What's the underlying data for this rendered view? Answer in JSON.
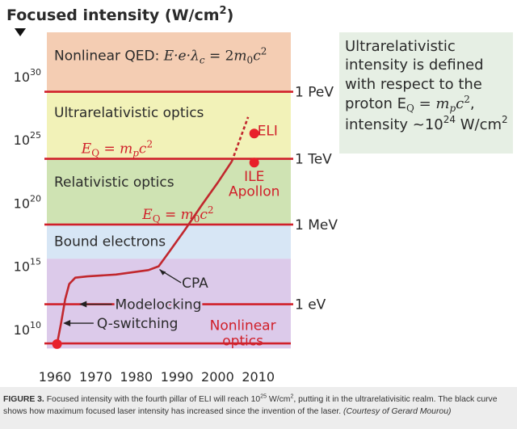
{
  "chart_data": {
    "type": "line",
    "title": "Focused intensity (W/cm2)",
    "title_base": "Focused intensity (W/cm",
    "title_sup": "2",
    "title_end": ")",
    "x_ticks": [
      "1960",
      "1970",
      "1980",
      "1990",
      "2000",
      "2010"
    ],
    "x_tick_values": [
      1960,
      1970,
      1980,
      1990,
      2000,
      2010
    ],
    "y_ticks": [
      {
        "base": "10",
        "exp": "10",
        "value": 10
      },
      {
        "base": "10",
        "exp": "15",
        "value": 15
      },
      {
        "base": "10",
        "exp": "20",
        "value": 20
      },
      {
        "base": "10",
        "exp": "25",
        "value": 25
      },
      {
        "base": "10",
        "exp": "30",
        "value": 30
      }
    ],
    "y_scale": "log10",
    "xlim": [
      1958,
      2018
    ],
    "ylim": [
      7.5,
      33.5
    ],
    "regions": [
      {
        "label": "Nonlinear QED: E·e·λc = 2m0c2",
        "y_range": [
          28.8,
          33.5
        ],
        "color": "#f4cdb3"
      },
      {
        "label": "Ultrarelativistic optics",
        "y_range": [
          23.5,
          28.8
        ],
        "color": "#f2f2b8"
      },
      {
        "label": "Relativistic optics",
        "y_range": [
          18.3,
          23.5
        ],
        "color": "#cfe3b3"
      },
      {
        "label": "Bound electrons",
        "y_range": [
          15.6,
          18.3
        ],
        "color": "#d7e6f5"
      },
      {
        "label": "",
        "y_range": [
          8.5,
          15.6
        ],
        "color": "#dccaea"
      }
    ],
    "thresholds": [
      {
        "energy": "1 PeV",
        "y": 28.8,
        "label": ""
      },
      {
        "energy": "1 TeV",
        "y": 23.5,
        "label": "E_Q = m_p c^2"
      },
      {
        "energy": "1 MeV",
        "y": 18.3,
        "label": "E_Q = m_0 c^2"
      },
      {
        "energy": "1 eV",
        "y": 12.0,
        "label": ""
      },
      {
        "energy": "",
        "y": 8.9,
        "label": "Nonlinear optics"
      }
    ],
    "series": [
      {
        "points": [
          [
            1960.5,
            8.85
          ],
          [
            1961.5,
            10.5
          ],
          [
            1962.5,
            12.4
          ],
          [
            1963.5,
            13.6
          ],
          [
            1965,
            14.1
          ],
          [
            1968,
            14.2
          ],
          [
            1975,
            14.35
          ],
          [
            1983,
            14.7
          ],
          [
            1985.5,
            15.0
          ],
          [
            1988,
            16.1
          ],
          [
            1992,
            17.9
          ],
          [
            1996,
            19.8
          ],
          [
            2000,
            21.6
          ],
          [
            2003.5,
            23.3
          ]
        ],
        "projection": [
          [
            2003.5,
            23.3
          ],
          [
            2007.5,
            26.8
          ]
        ]
      }
    ],
    "points": [
      {
        "label": "ELI",
        "x": 2009,
        "y": 25.5
      },
      {
        "label": "ILE Apollon",
        "x": 2009,
        "y": 23.2
      },
      {
        "label": "",
        "x": 1960.5,
        "y": 8.85
      }
    ],
    "annotations": [
      {
        "label": "CPA",
        "x": 1985.5,
        "y": 15.0
      },
      {
        "label": "Modelocking",
        "x": 1966,
        "y": 12.0
      },
      {
        "label": "Q-switching",
        "x": 1962,
        "y": 10.5
      }
    ],
    "side_note": {
      "line1": "Ultrarelativistic",
      "line2": "intensity is defined",
      "line3": "with respect to the",
      "line4": "proton E",
      "line5": "intensity ~10",
      "line5_exp": "24",
      "line5_end": " W/cm"
    },
    "colors": {
      "curve": "#c1272d",
      "points": "#e8202a",
      "threshold": "#d0202a",
      "text": "#2a2a2a"
    }
  },
  "caption": {
    "figure_label": "FIGURE 3.",
    "text_a": " Focused intensity with the fourth pillar of ELI will reach 10",
    "text_exp": "25",
    "text_b": " W/cm",
    "text_sup": "2",
    "text_c": ", putting it in the ultrarelativisitic realm. The black curve shows how maximum focused laser intensity has increased since the invention of the laser. ",
    "credit": "(Courtesy of Gerard Mourou)"
  }
}
